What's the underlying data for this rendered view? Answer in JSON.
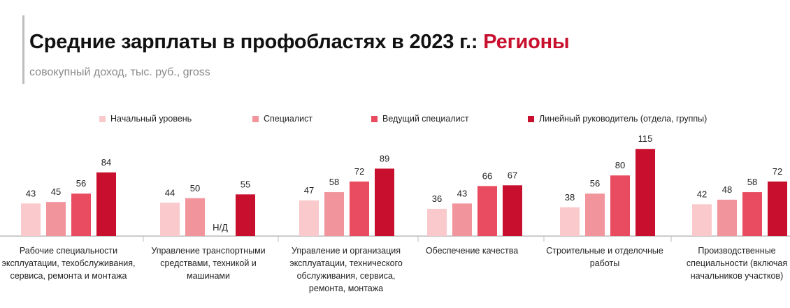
{
  "header": {
    "title_main": "Средние зарплаты в профобластях в 2023 г.: ",
    "title_highlight": "Регионы",
    "subtitle": "совокупный доход, тыс. руб., gross"
  },
  "colors": {
    "accent": "#c8102e",
    "series": [
      "#f9c9cc",
      "#f2949c",
      "#e94c60",
      "#c8102e"
    ],
    "axis": "#9a9a9a",
    "separator": "#bdbdbd"
  },
  "chart_data": {
    "type": "bar",
    "title": "Средние зарплаты в профобластях в 2023 г.: Регионы",
    "subtitle": "совокупный доход, тыс. руб., gross",
    "legend_position": "top",
    "grid": false,
    "ylim": [
      0,
      115
    ],
    "categories": [
      "Рабочие специальности эксплуатации, техобслуживания, сервиса, ремонта и монтажа",
      "Управление транспортными средствами, техникой и машинами",
      "Управление и организация эксплуатации, технического обслуживания, сервиса, ремонта, монтажа",
      "Обеспечение качества",
      "Строительные и отделочные работы",
      "Производственные специальности (включая начальников участков)"
    ],
    "series": [
      {
        "name": "Начальный уровень",
        "values": [
          43,
          44,
          47,
          36,
          38,
          42
        ]
      },
      {
        "name": "Специалист",
        "values": [
          45,
          50,
          58,
          43,
          56,
          48
        ]
      },
      {
        "name": "Ведущий специалист",
        "values": [
          56,
          null,
          72,
          66,
          80,
          58
        ]
      },
      {
        "name": "Линейный руководитель (отдела, группы)",
        "values": [
          84,
          55,
          89,
          67,
          115,
          72
        ]
      }
    ],
    "missing_label": "Н/Д"
  }
}
